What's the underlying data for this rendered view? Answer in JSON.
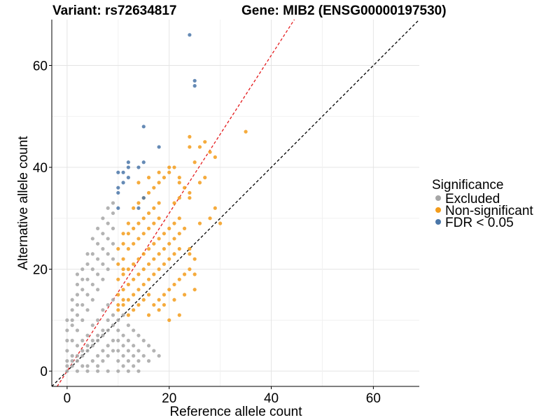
{
  "chart_data": {
    "type": "scatter",
    "title_left": "Variant: rs72634817",
    "title_right": "Gene: MIB2 (ENSG00000197530)",
    "xlabel": "Reference allele count",
    "ylabel": "Alternative allele count",
    "xlim": [
      -3,
      69
    ],
    "ylim": [
      -3,
      69
    ],
    "xticks": [
      0,
      20,
      40,
      60
    ],
    "yticks": [
      0,
      20,
      40,
      60
    ],
    "grid": true,
    "legend": {
      "title": "Significance",
      "placement": "right",
      "entries": [
        {
          "label": "Excluded",
          "color": "#a6a6a6"
        },
        {
          "label": "Non-significant",
          "color": "#f39c1b"
        },
        {
          "label": "FDR < 0.05",
          "color": "#4a76a8"
        }
      ]
    },
    "reference_lines": [
      {
        "name": "identity",
        "slope": 1,
        "intercept": 0,
        "color": "#000000",
        "dash": true
      },
      {
        "name": "fit",
        "slope": 1.55,
        "intercept": 0,
        "color": "#e41a1c",
        "dash": true
      }
    ],
    "series": [
      {
        "name": "Excluded",
        "color": "#a6a6a6",
        "points": [
          [
            0,
            0
          ],
          [
            1,
            1
          ],
          [
            2,
            2
          ],
          [
            3,
            3
          ],
          [
            4,
            4
          ],
          [
            5,
            5
          ],
          [
            6,
            6
          ],
          [
            7,
            7
          ],
          [
            8,
            8
          ],
          [
            9,
            9
          ],
          [
            0,
            2
          ],
          [
            1,
            3
          ],
          [
            2,
            5
          ],
          [
            3,
            6
          ],
          [
            4,
            7
          ],
          [
            5,
            9
          ],
          [
            6,
            10
          ],
          [
            7,
            12
          ],
          [
            8,
            13
          ],
          [
            9,
            14
          ],
          [
            0,
            4
          ],
          [
            1,
            6
          ],
          [
            2,
            8
          ],
          [
            3,
            10
          ],
          [
            4,
            12
          ],
          [
            5,
            14
          ],
          [
            6,
            16
          ],
          [
            7,
            18
          ],
          [
            8,
            20
          ],
          [
            9,
            22
          ],
          [
            0,
            6
          ],
          [
            1,
            9
          ],
          [
            2,
            11
          ],
          [
            3,
            13
          ],
          [
            4,
            15
          ],
          [
            5,
            17
          ],
          [
            6,
            19
          ],
          [
            7,
            21
          ],
          [
            8,
            23
          ],
          [
            9,
            25
          ],
          [
            0,
            8
          ],
          [
            1,
            10
          ],
          [
            2,
            13
          ],
          [
            3,
            16
          ],
          [
            4,
            18
          ],
          [
            5,
            20
          ],
          [
            6,
            22
          ],
          [
            7,
            24
          ],
          [
            8,
            26
          ],
          [
            9,
            28
          ],
          [
            0,
            10
          ],
          [
            1,
            12
          ],
          [
            2,
            15
          ],
          [
            3,
            18
          ],
          [
            4,
            21
          ],
          [
            5,
            23
          ],
          [
            6,
            25
          ],
          [
            7,
            27
          ],
          [
            8,
            29
          ],
          [
            9,
            31
          ],
          [
            0,
            1
          ],
          [
            1,
            2
          ],
          [
            2,
            3
          ],
          [
            3,
            4
          ],
          [
            4,
            5
          ],
          [
            5,
            6
          ],
          [
            6,
            7
          ],
          [
            7,
            8
          ],
          [
            8,
            10
          ],
          [
            9,
            11
          ],
          [
            2,
            17
          ],
          [
            3,
            20
          ],
          [
            4,
            23
          ],
          [
            5,
            26
          ],
          [
            6,
            28
          ],
          [
            7,
            30
          ],
          [
            8,
            32
          ],
          [
            9,
            33
          ],
          [
            1,
            14
          ],
          [
            2,
            19
          ],
          [
            10,
            10
          ],
          [
            11,
            11
          ],
          [
            12,
            9
          ],
          [
            13,
            8
          ],
          [
            14,
            7
          ],
          [
            15,
            6
          ],
          [
            16,
            5
          ],
          [
            17,
            4
          ],
          [
            18,
            3
          ],
          [
            10,
            8
          ],
          [
            11,
            7
          ],
          [
            12,
            6
          ],
          [
            13,
            5
          ],
          [
            14,
            4
          ],
          [
            15,
            3
          ],
          [
            16,
            2
          ],
          [
            10,
            6
          ],
          [
            11,
            5
          ],
          [
            12,
            4
          ],
          [
            13,
            3
          ],
          [
            14,
            2
          ],
          [
            10,
            4
          ],
          [
            11,
            3
          ],
          [
            12,
            2
          ],
          [
            13,
            1
          ],
          [
            10,
            2
          ],
          [
            11,
            1
          ],
          [
            10,
            0
          ],
          [
            12,
            0
          ],
          [
            14,
            0
          ],
          [
            6,
            3
          ],
          [
            7,
            4
          ],
          [
            8,
            5
          ],
          [
            9,
            6
          ],
          [
            5,
            2
          ],
          [
            6,
            1
          ],
          [
            7,
            2
          ],
          [
            8,
            3
          ],
          [
            9,
            4
          ],
          [
            4,
            1
          ],
          [
            3,
            1
          ],
          [
            2,
            0
          ],
          [
            4,
            0
          ],
          [
            6,
            0
          ],
          [
            8,
            0
          ]
        ]
      },
      {
        "name": "Non-significant",
        "color": "#f39c1b",
        "points": [
          [
            10,
            12
          ],
          [
            11,
            13
          ],
          [
            12,
            14
          ],
          [
            13,
            15
          ],
          [
            14,
            16
          ],
          [
            15,
            17
          ],
          [
            16,
            18
          ],
          [
            17,
            19
          ],
          [
            18,
            20
          ],
          [
            19,
            21
          ],
          [
            20,
            22
          ],
          [
            21,
            23
          ],
          [
            22,
            24
          ],
          [
            10,
            15
          ],
          [
            11,
            16
          ],
          [
            12,
            17
          ],
          [
            13,
            18
          ],
          [
            14,
            19
          ],
          [
            15,
            20
          ],
          [
            16,
            21
          ],
          [
            17,
            22
          ],
          [
            18,
            23
          ],
          [
            19,
            24
          ],
          [
            20,
            25
          ],
          [
            21,
            26
          ],
          [
            22,
            27
          ],
          [
            10,
            18
          ],
          [
            11,
            19
          ],
          [
            12,
            20
          ],
          [
            13,
            21
          ],
          [
            14,
            22
          ],
          [
            15,
            23
          ],
          [
            16,
            24
          ],
          [
            17,
            25
          ],
          [
            18,
            26
          ],
          [
            19,
            27
          ],
          [
            20,
            28
          ],
          [
            21,
            29
          ],
          [
            22,
            30
          ],
          [
            10,
            21
          ],
          [
            11,
            22
          ],
          [
            12,
            24
          ],
          [
            13,
            25
          ],
          [
            14,
            26
          ],
          [
            15,
            27
          ],
          [
            16,
            28
          ],
          [
            17,
            29
          ],
          [
            18,
            30
          ],
          [
            11,
            25
          ],
          [
            12,
            27
          ],
          [
            13,
            28
          ],
          [
            14,
            29
          ],
          [
            15,
            30
          ],
          [
            16,
            31
          ],
          [
            17,
            32
          ],
          [
            18,
            33
          ],
          [
            13,
            32
          ],
          [
            14,
            33
          ],
          [
            15,
            34
          ],
          [
            16,
            35
          ],
          [
            17,
            36
          ],
          [
            18,
            37
          ],
          [
            19,
            38
          ],
          [
            20,
            39
          ],
          [
            21,
            40
          ],
          [
            22,
            38
          ],
          [
            23,
            36
          ],
          [
            24,
            35
          ],
          [
            14,
            37
          ],
          [
            16,
            38
          ],
          [
            18,
            39
          ],
          [
            20,
            40
          ],
          [
            22,
            37
          ],
          [
            24,
            34
          ],
          [
            11,
            14
          ],
          [
            12,
            11
          ],
          [
            13,
            12
          ],
          [
            14,
            13
          ],
          [
            15,
            14
          ],
          [
            16,
            15
          ],
          [
            17,
            13
          ],
          [
            18,
            14
          ],
          [
            19,
            15
          ],
          [
            20,
            16
          ],
          [
            21,
            17
          ],
          [
            22,
            18
          ],
          [
            23,
            19
          ],
          [
            24,
            20
          ],
          [
            16,
            11
          ],
          [
            18,
            12
          ],
          [
            20,
            10
          ],
          [
            22,
            11
          ],
          [
            19,
            13
          ],
          [
            21,
            14
          ],
          [
            23,
            15
          ],
          [
            25,
            16
          ],
          [
            24,
            23
          ],
          [
            25,
            22
          ],
          [
            26,
            29
          ],
          [
            28,
            30
          ],
          [
            30,
            29
          ],
          [
            29,
            32
          ],
          [
            26,
            37
          ],
          [
            27,
            38
          ],
          [
            28,
            43
          ],
          [
            29,
            42
          ],
          [
            24,
            44
          ],
          [
            24,
            46
          ],
          [
            27,
            45
          ],
          [
            35,
            47
          ],
          [
            25,
            41
          ],
          [
            26,
            44
          ],
          [
            25,
            19
          ],
          [
            24,
            24
          ],
          [
            23,
            28
          ],
          [
            21,
            33
          ],
          [
            22,
            34
          ],
          [
            12,
            29
          ],
          [
            11,
            27
          ],
          [
            10,
            13
          ],
          [
            10,
            24
          ],
          [
            11,
            20
          ]
        ]
      },
      {
        "name": "FDR < 0.05",
        "color": "#4a76a8",
        "points": [
          [
            24,
            66
          ],
          [
            25,
            57
          ],
          [
            25,
            56
          ],
          [
            15,
            48
          ],
          [
            18,
            44
          ],
          [
            12,
            41
          ],
          [
            15,
            41
          ],
          [
            10,
            39
          ],
          [
            11,
            39
          ],
          [
            12,
            38
          ],
          [
            11,
            37
          ],
          [
            10,
            36
          ],
          [
            10,
            35
          ],
          [
            15,
            34
          ],
          [
            14,
            32
          ],
          [
            10,
            32
          ],
          [
            14,
            40
          ],
          [
            12,
            40
          ]
        ]
      }
    ]
  }
}
